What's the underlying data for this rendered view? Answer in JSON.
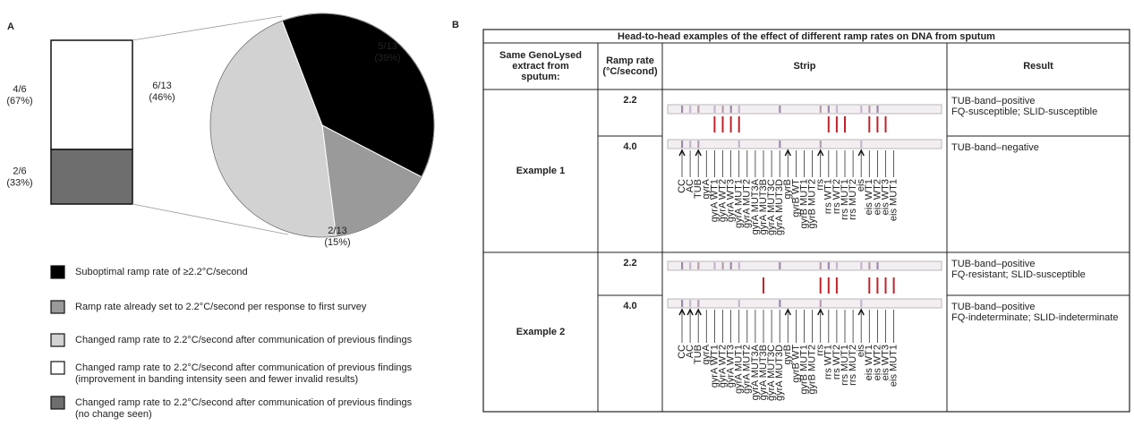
{
  "panel_a": {
    "label": "A",
    "pie": {
      "values": [
        5,
        2,
        6
      ],
      "value_labels": [
        [
          "5/13",
          "(39%)"
        ],
        [
          "2/13",
          "(15%)"
        ],
        [
          "6/13",
          "(46%)"
        ]
      ],
      "colors": [
        "#000000",
        "#9a9a9a",
        "#d2d2d2"
      ]
    },
    "bar": {
      "values": [
        4,
        2
      ],
      "value_labels": [
        [
          "4/6",
          "(67%)"
        ],
        [
          "2/6",
          "(33%)"
        ]
      ],
      "colors": [
        "#ffffff",
        "#6e6e6e"
      ]
    },
    "legend": [
      {
        "color": "#000000",
        "text": [
          "Suboptimal ramp rate of ≥2.2°C/second"
        ]
      },
      {
        "color": "#9a9a9a",
        "text": [
          "Ramp rate already set to 2.2°C/second per response to first survey"
        ]
      },
      {
        "color": "#d2d2d2",
        "text": [
          "Changed ramp rate to 2.2°C/second after communication of previous findings"
        ]
      },
      {
        "color": "#ffffff",
        "text": [
          "Changed ramp rate to 2.2°C/second after communication of previous findings",
          "(improvement in banding intensity seen and fewer invalid results)"
        ]
      },
      {
        "color": "#6e6e6e",
        "text": [
          "Changed ramp rate to 2.2°C/second after communication of previous findings",
          "(no change seen)"
        ]
      }
    ]
  },
  "panel_b": {
    "label": "B",
    "title": "Head-to-head examples of the effect of different ramp rates on DNA from sputum",
    "headers": [
      [
        "Same GenoLysed",
        "extract from",
        "sputum:"
      ],
      [
        "Ramp rate",
        "(°C/second)"
      ],
      [
        "Strip"
      ],
      [
        "Result"
      ]
    ],
    "examples": [
      {
        "name": "Example 1",
        "rows": [
          {
            "ramp": "2.2",
            "result": [
              "TUB-band–positive",
              "FQ-susceptible; SLID-susceptible"
            ]
          },
          {
            "ramp": "4.0",
            "result": [
              "TUB-band–negative"
            ]
          }
        ]
      },
      {
        "name": "Example 2",
        "rows": [
          {
            "ramp": "2.2",
            "result": [
              "TUB-band–positive",
              "FQ-resistant; SLID-susceptible"
            ]
          },
          {
            "ramp": "4.0",
            "result": [
              "TUB-band–positive",
              "FQ-indeterminate; SLID-indeterminate"
            ]
          }
        ]
      }
    ],
    "strip_labels": [
      "CC",
      "AC",
      "TUB",
      "gyrA",
      "gyrA WT1",
      "gyrA WT2",
      "gyrA WT3",
      "gyrA MUT1",
      "gyrA MUT2",
      "gyrA MUT3A",
      "gyrA MUT3B",
      "gyrA MUT3C",
      "gyrA MUT3D",
      "gyrB",
      "gyrB WT",
      "gyrB MUT1",
      "gyrB MUT2",
      "rrs",
      "rrs WT1",
      "rrs WT2",
      "rrs MUT1",
      "rrs MUT2",
      "eis",
      "eis WT1",
      "eis WT2",
      "eis WT3",
      "eis MUT1"
    ]
  }
}
